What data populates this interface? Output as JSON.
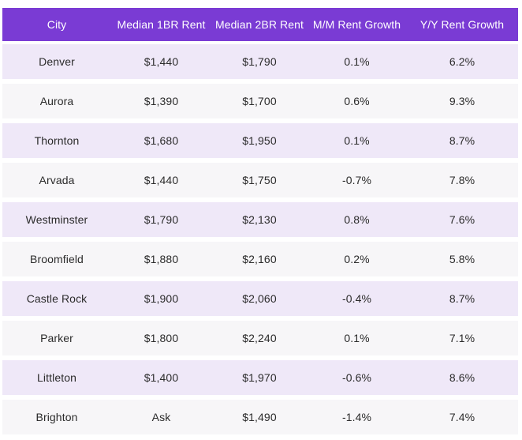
{
  "theme": {
    "header_bg": "#7A3BD4",
    "header_text": "#FFFFFF",
    "row_purple_bg": "#EFE8F8",
    "row_gray_bg": "#F7F6F8",
    "cell_text": "#2B2B2B",
    "page_bg": "#FFFFFF"
  },
  "chart_data": {
    "type": "table",
    "columns": [
      "City",
      "Median 1BR Rent",
      "Median 2BR Rent",
      "M/M Rent Growth",
      "Y/Y Rent Growth"
    ],
    "rows": [
      [
        "Denver",
        "$1,440",
        "$1,790",
        "0.1%",
        "6.2%"
      ],
      [
        "Aurora",
        "$1,390",
        "$1,700",
        "0.6%",
        "9.3%"
      ],
      [
        "Thornton",
        "$1,680",
        "$1,950",
        "0.1%",
        "8.7%"
      ],
      [
        "Arvada",
        "$1,440",
        "$1,750",
        "-0.7%",
        "7.8%"
      ],
      [
        "Westminster",
        "$1,790",
        "$2,130",
        "0.8%",
        "7.6%"
      ],
      [
        "Broomfield",
        "$1,880",
        "$2,160",
        "0.2%",
        "5.8%"
      ],
      [
        "Castle Rock",
        "$1,900",
        "$2,060",
        "-0.4%",
        "8.7%"
      ],
      [
        "Parker",
        "$1,800",
        "$2,240",
        "0.1%",
        "7.1%"
      ],
      [
        "Littleton",
        "$1,400",
        "$1,970",
        "-0.6%",
        "8.6%"
      ],
      [
        "Brighton",
        "Ask",
        "$1,490",
        "-1.4%",
        "7.4%"
      ]
    ]
  }
}
